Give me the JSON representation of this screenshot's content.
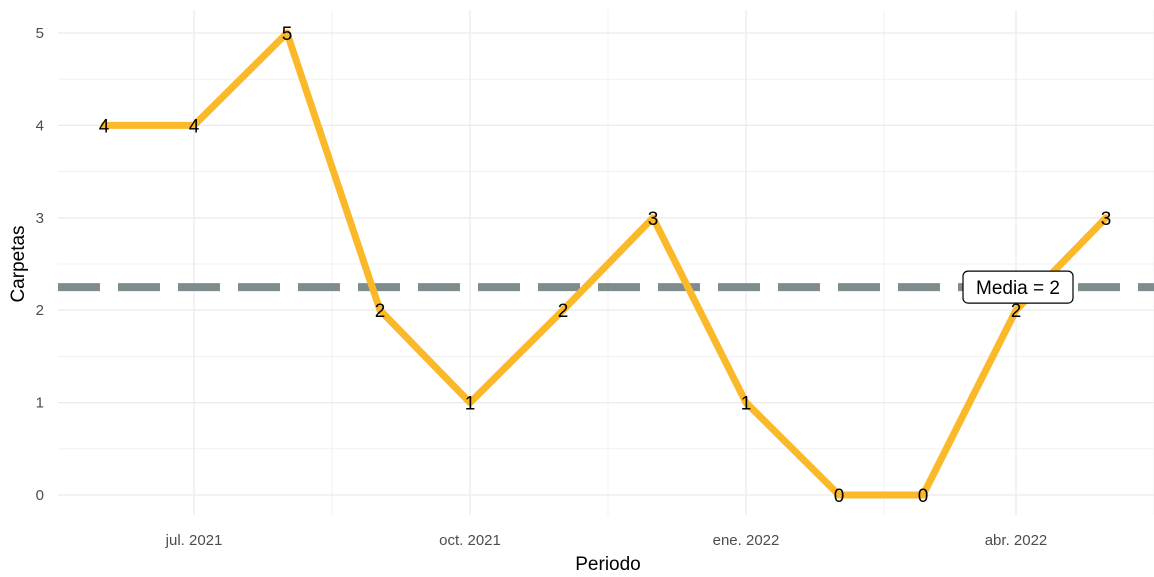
{
  "chart_data": {
    "type": "line",
    "title": "",
    "xlabel": "Periodo",
    "ylabel": "Carpetas",
    "x": [
      "2021-06-01",
      "2021-07-01",
      "2021-08-01",
      "2021-09-01",
      "2021-10-01",
      "2021-11-01",
      "2021-12-01",
      "2022-01-01",
      "2022-02-01",
      "2022-03-01",
      "2022-04-01",
      "2022-05-01"
    ],
    "values": [
      4,
      4,
      5,
      2,
      1,
      2,
      3,
      1,
      0,
      0,
      2,
      3
    ],
    "data_labels": [
      "4",
      "4",
      "5",
      "2",
      "1",
      "2",
      "3",
      "1",
      "0",
      "0",
      "2",
      "3"
    ],
    "ylim": [
      0,
      5
    ],
    "y_ticks": [
      "0",
      "1",
      "2",
      "3",
      "4",
      "5"
    ],
    "x_ticks": [
      {
        "date": "2021-07-01",
        "label": "jul. 2021"
      },
      {
        "date": "2021-10-01",
        "label": "oct. 2021"
      },
      {
        "date": "2022-01-01",
        "label": "ene. 2022"
      },
      {
        "date": "2022-04-01",
        "label": "abr. 2022"
      }
    ],
    "mean_line": {
      "value": 2.25,
      "label": "Media = 2"
    },
    "grid": true,
    "legend": "none",
    "colors": {
      "line": "#FBB829",
      "mean": "#7F8C8D",
      "grid": "#EBEBEB"
    }
  }
}
